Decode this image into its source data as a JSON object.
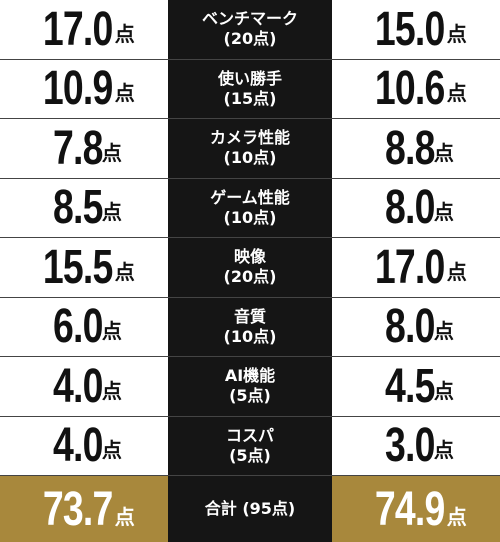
{
  "table": {
    "rows": [
      {
        "left": {
          "number": "17.0",
          "unit": "点"
        },
        "label": "ベンチマーク",
        "sub": "(20点)",
        "right": {
          "number": "15.0",
          "unit": "点"
        }
      },
      {
        "left": {
          "number": "10.9",
          "unit": "点"
        },
        "label": "使い勝手",
        "sub": "(15点)",
        "right": {
          "number": "10.6",
          "unit": "点"
        }
      },
      {
        "left": {
          "number": "7.8",
          "unit": "点"
        },
        "label": "カメラ性能",
        "sub": "(10点)",
        "right": {
          "number": "8.8",
          "unit": "点"
        }
      },
      {
        "left": {
          "number": "8.5",
          "unit": "点"
        },
        "label": "ゲーム性能",
        "sub": "(10点)",
        "right": {
          "number": "8.0",
          "unit": "点"
        }
      },
      {
        "left": {
          "number": "15.5",
          "unit": "点"
        },
        "label": "映像",
        "sub": "(20点)",
        "right": {
          "number": "17.0",
          "unit": "点"
        }
      },
      {
        "left": {
          "number": "6.0",
          "unit": "点"
        },
        "label": "音質",
        "sub": "(10点)",
        "right": {
          "number": "8.0",
          "unit": "点"
        }
      },
      {
        "left": {
          "number": "4.0",
          "unit": "点"
        },
        "label": "AI機能",
        "sub": "(5点)",
        "right": {
          "number": "4.5",
          "unit": "点"
        }
      },
      {
        "left": {
          "number": "4.0",
          "unit": "点"
        },
        "label": "コスパ",
        "sub": "(5点)",
        "right": {
          "number": "3.0",
          "unit": "点"
        }
      }
    ],
    "total": {
      "left": {
        "number": "73.7",
        "unit": "点"
      },
      "label": "合計 (95点)",
      "right": {
        "number": "74.9",
        "unit": "点"
      }
    }
  }
}
